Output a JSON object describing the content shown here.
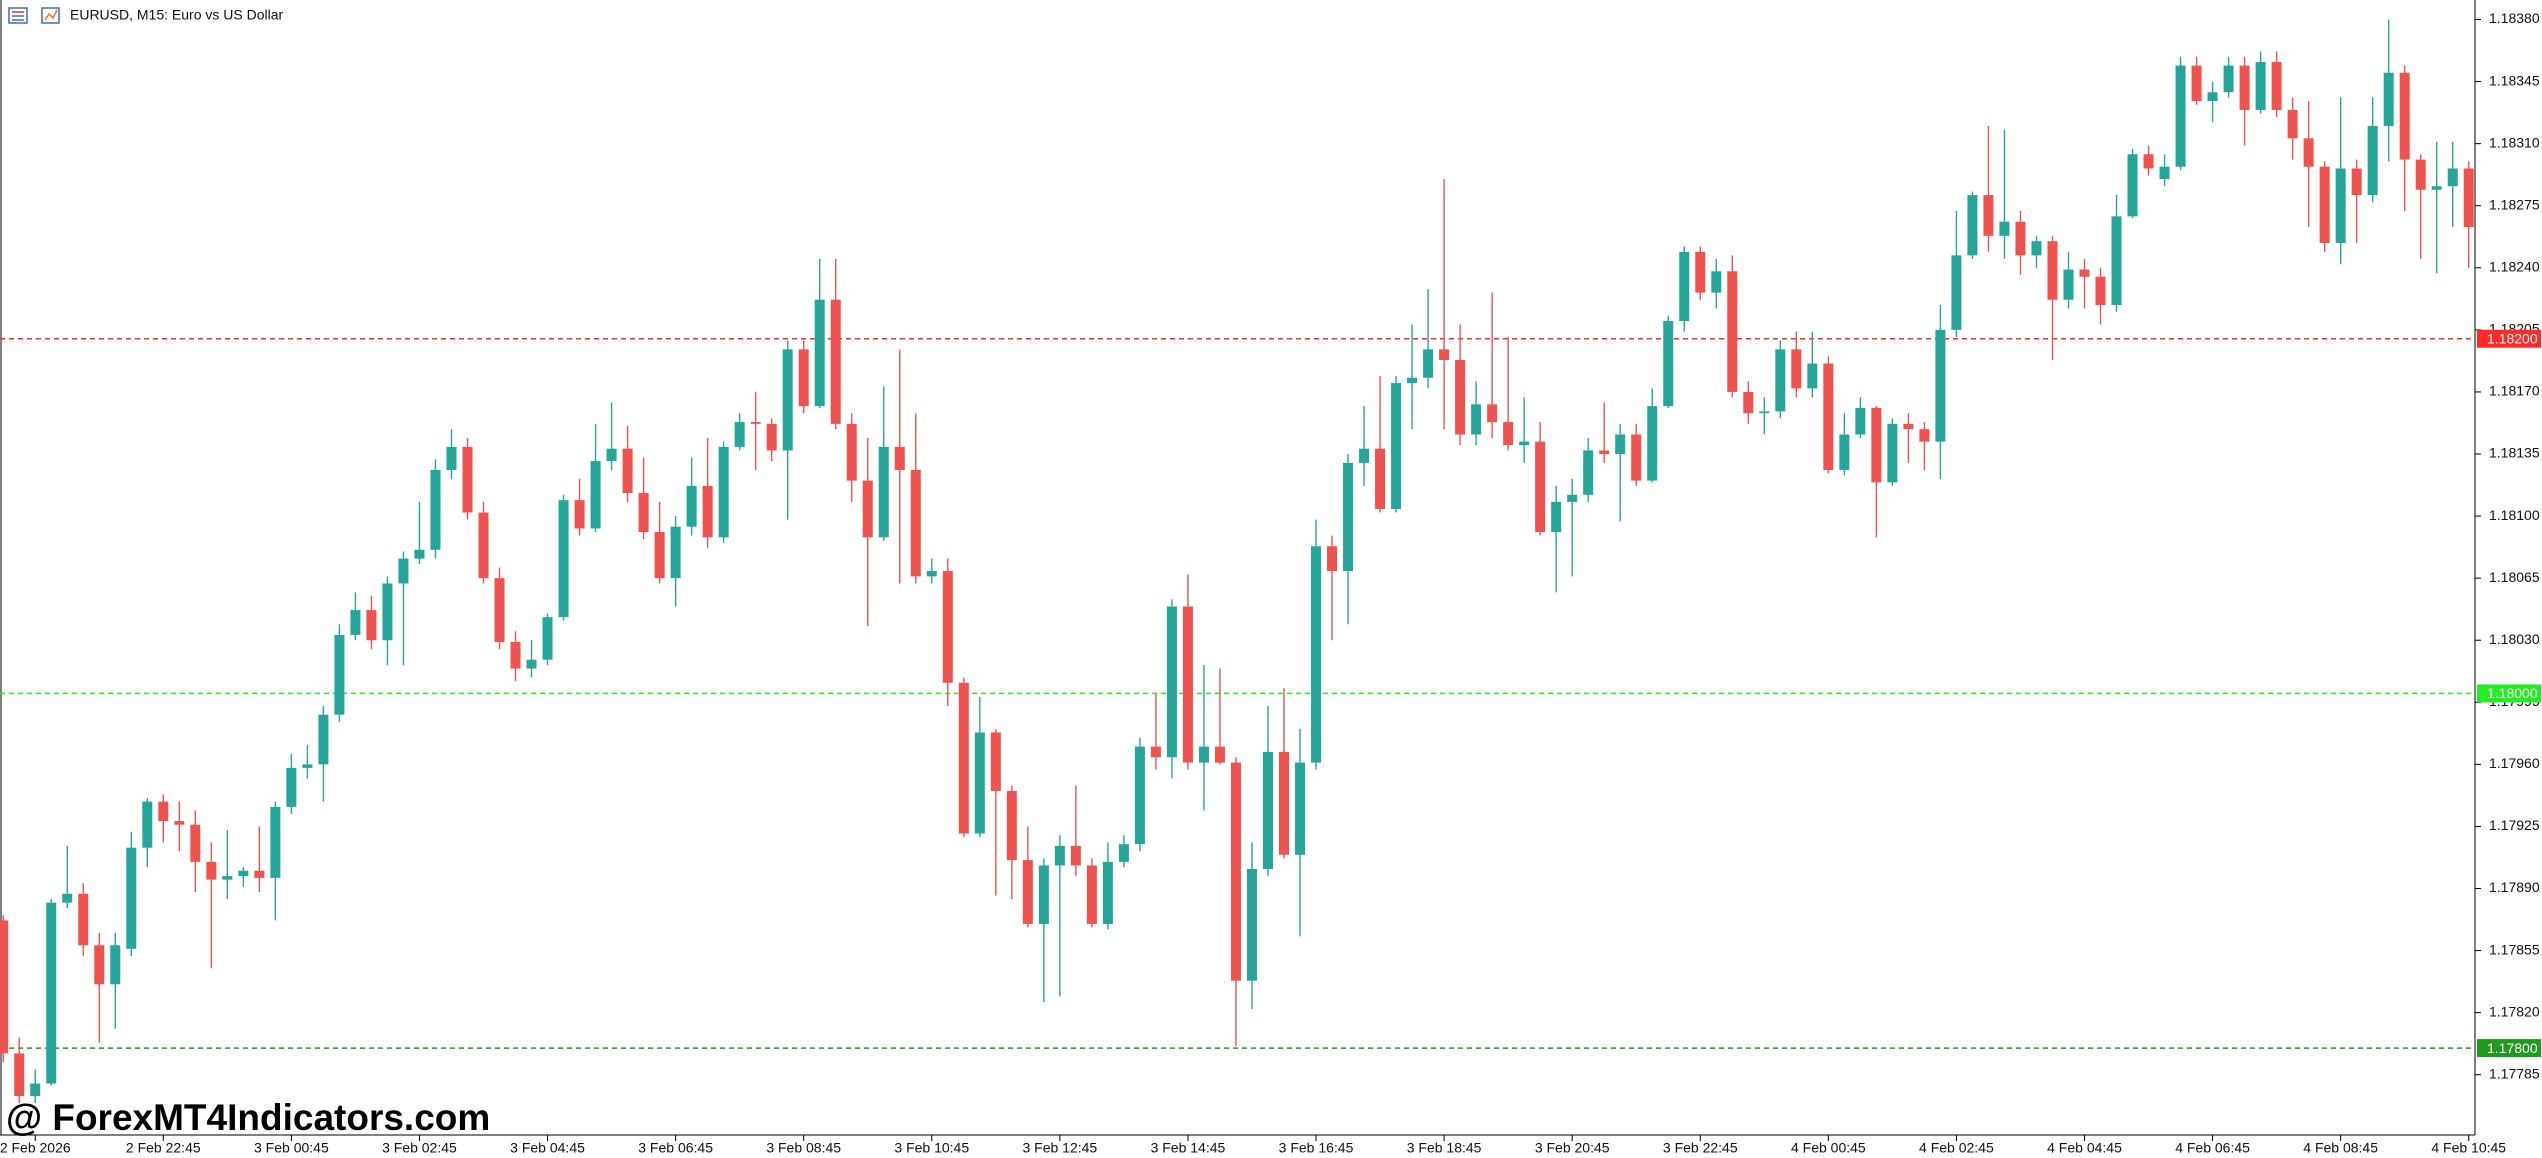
{
  "chart_data": {
    "type": "candlestick",
    "title": "EURUSD, M15:  Euro vs US Dollar",
    "annotation": "@ ForexMT4Indicators.com",
    "up_color": "#26a69a",
    "down_color": "#ef5350",
    "grid": false,
    "ylim": [
      1.17751,
      1.18391
    ],
    "yticks": [
      {
        "value": 1.1838,
        "label": "1.18380"
      },
      {
        "value": 1.18345,
        "label": "1.18345"
      },
      {
        "value": 1.1831,
        "label": "1.18310"
      },
      {
        "value": 1.18275,
        "label": "1.18275"
      },
      {
        "value": 1.1824,
        "label": "1.18240"
      },
      {
        "value": 1.18205,
        "label": "1.18205"
      },
      {
        "value": 1.1817,
        "label": "1.18170"
      },
      {
        "value": 1.18135,
        "label": "1.18135"
      },
      {
        "value": 1.181,
        "label": "1.18100"
      },
      {
        "value": 1.18065,
        "label": "1.18065"
      },
      {
        "value": 1.1803,
        "label": "1.18030"
      },
      {
        "value": 1.17995,
        "label": "1.17995"
      },
      {
        "value": 1.1796,
        "label": "1.17960"
      },
      {
        "value": 1.17925,
        "label": "1.17925"
      },
      {
        "value": 1.1789,
        "label": "1.17890"
      },
      {
        "value": 1.17855,
        "label": "1.17855"
      },
      {
        "value": 1.1782,
        "label": "1.17820"
      },
      {
        "value": 1.17785,
        "label": "1.17785"
      }
    ],
    "levels": [
      {
        "value": 1.182,
        "label": "1.18200",
        "color": "#ff2a2a"
      },
      {
        "value": 1.18,
        "label": "1.18000",
        "color": "#22ee22"
      },
      {
        "value": 1.178,
        "label": "1.17800",
        "color": "#1f9a1f"
      }
    ],
    "categories": [
      null,
      null,
      "2 Feb 2026",
      null,
      null,
      null,
      null,
      null,
      null,
      null,
      "2 Feb 22:45",
      null,
      null,
      null,
      null,
      null,
      null,
      null,
      "3 Feb 00:45",
      null,
      null,
      null,
      null,
      null,
      null,
      null,
      "3 Feb 02:45",
      null,
      null,
      null,
      null,
      null,
      null,
      null,
      "3 Feb 04:45",
      null,
      null,
      null,
      null,
      null,
      null,
      null,
      "3 Feb 06:45",
      null,
      null,
      null,
      null,
      null,
      null,
      null,
      "3 Feb 08:45",
      null,
      null,
      null,
      null,
      null,
      null,
      null,
      "3 Feb 10:45",
      null,
      null,
      null,
      null,
      null,
      null,
      null,
      "3 Feb 12:45",
      null,
      null,
      null,
      null,
      null,
      null,
      null,
      "3 Feb 14:45",
      null,
      null,
      null,
      null,
      null,
      null,
      null,
      "3 Feb 16:45",
      null,
      null,
      null,
      null,
      null,
      null,
      null,
      "3 Feb 18:45",
      null,
      null,
      null,
      null,
      null,
      null,
      null,
      "3 Feb 20:45",
      null,
      null,
      null,
      null,
      null,
      null,
      null,
      "3 Feb 22:45",
      null,
      null,
      null,
      null,
      null,
      null,
      null,
      "4 Feb 00:45",
      null,
      null,
      null,
      null,
      null,
      null,
      null,
      "4 Feb 02:45",
      null,
      null,
      null,
      null,
      null,
      null,
      null,
      "4 Feb 04:45",
      null,
      null,
      null,
      null,
      null,
      null,
      null,
      "4 Feb 06:45",
      null,
      null,
      null,
      null,
      null,
      null,
      null,
      "4 Feb 08:45",
      null,
      null,
      null,
      null,
      null,
      null,
      null,
      "4 Feb 10:45"
    ],
    "open": [
      1.17872,
      1.17797,
      1.17773,
      1.1778,
      1.17882,
      1.17887,
      1.17858,
      1.17836,
      1.17856,
      1.17913,
      1.17939,
      1.17928,
      1.17926,
      1.17905,
      1.17895,
      1.17897,
      1.179,
      1.17896,
      1.17936,
      1.17958,
      1.1796,
      1.17988,
      1.18033,
      1.18047,
      1.1803,
      1.18062,
      1.18076,
      1.18081,
      1.18126,
      1.18139,
      1.18102,
      1.18065,
      1.18029,
      1.18014,
      1.18019,
      1.18043,
      1.18109,
      1.18093,
      1.18131,
      1.18138,
      1.18113,
      1.18091,
      1.18065,
      1.18094,
      1.18117,
      1.18088,
      1.18139,
      1.18153,
      1.18152,
      1.18137,
      1.18194,
      1.18162,
      1.18222,
      1.18152,
      1.1812,
      1.18088,
      1.18139,
      1.18126,
      1.18066,
      1.18069,
      1.18006,
      1.17921,
      1.17978,
      1.17945,
      1.17906,
      1.1787,
      1.17903,
      1.17914,
      1.17903,
      1.1787,
      1.17905,
      1.17915,
      1.1797,
      1.17964,
      1.18049,
      1.17961,
      1.1797,
      1.17961,
      1.17838,
      1.17901,
      1.17967,
      1.17909,
      1.17961,
      1.18083,
      1.18069,
      1.1813,
      1.18138,
      1.18104,
      1.18175,
      1.18178,
      1.18194,
      1.18188,
      1.18146,
      1.18163,
      1.18153,
      1.1814,
      1.18142,
      1.18091,
      1.18108,
      1.18112,
      1.18137,
      1.18135,
      1.18146,
      1.1812,
      1.18162,
      1.1821,
      1.18249,
      1.18226,
      1.18238,
      1.1817,
      1.18158,
      1.18159,
      1.18194,
      1.18172,
      1.18186,
      1.18126,
      1.18146,
      1.18161,
      1.18119,
      1.18152,
      1.18149,
      1.18142,
      1.18205,
      1.18247,
      1.18281,
      1.18258,
      1.18266,
      1.18247,
      1.18255,
      1.18222,
      1.18239,
      1.18235,
      1.18219,
      1.18269,
      1.18304,
      1.1829,
      1.18297,
      1.18354,
      1.18334,
      1.18339,
      1.18354,
      1.18329,
      1.18356,
      1.18329,
      1.18313,
      1.18297,
      1.18254,
      1.18296,
      1.18281,
      1.1832,
      1.1835,
      1.18301,
      1.18284,
      1.18286,
      1.18296
    ],
    "high": [
      1.17875,
      1.17806,
      1.17788,
      1.17884,
      1.17914,
      1.17893,
      1.17865,
      1.17865,
      1.17922,
      1.17941,
      1.17943,
      1.17939,
      1.17934,
      1.17916,
      1.17923,
      1.17902,
      1.17925,
      1.17939,
      1.17966,
      1.17971,
      1.17993,
      1.18039,
      1.18057,
      1.18055,
      1.18066,
      1.1808,
      1.18108,
      1.18132,
      1.18149,
      1.18144,
      1.18108,
      1.18071,
      1.18035,
      1.1803,
      1.18045,
      1.18112,
      1.18121,
      1.18152,
      1.18164,
      1.18151,
      1.18133,
      1.18108,
      1.181,
      1.18133,
      1.18144,
      1.18142,
      1.18158,
      1.1817,
      1.18155,
      1.18199,
      1.18199,
      1.18245,
      1.18245,
      1.18158,
      1.18144,
      1.18173,
      1.18194,
      1.18158,
      1.18076,
      1.18076,
      1.18009,
      1.17998,
      1.1798,
      1.17948,
      1.17925,
      1.17907,
      1.1792,
      1.17948,
      1.17907,
      1.17916,
      1.1792,
      1.17975,
      1.18,
      1.18053,
      1.18067,
      1.18016,
      1.18014,
      1.17964,
      1.17916,
      1.17993,
      1.18003,
      1.1798,
      1.18098,
      1.18089,
      1.18135,
      1.18162,
      1.18179,
      1.18179,
      1.18208,
      1.18228,
      1.1829,
      1.18208,
      1.18176,
      1.18226,
      1.18201,
      1.18167,
      1.18153,
      1.18117,
      1.18121,
      1.18144,
      1.18164,
      1.18152,
      1.18152,
      1.18172,
      1.18213,
      1.18252,
      1.18252,
      1.18245,
      1.18247,
      1.18176,
      1.18167,
      1.18199,
      1.18204,
      1.18204,
      1.1819,
      1.18158,
      1.18167,
      1.18162,
      1.18155,
      1.18158,
      1.18153,
      1.18219,
      1.18272,
      1.18283,
      1.1832,
      1.18318,
      1.18272,
      1.18258,
      1.18258,
      1.18249,
      1.18245,
      1.1824,
      1.18281,
      1.18307,
      1.18309,
      1.18304,
      1.18359,
      1.18359,
      1.18345,
      1.18359,
      1.18359,
      1.18362,
      1.18362,
      1.18336,
      1.18334,
      1.183,
      1.18336,
      1.18301,
      1.18336,
      1.1838,
      1.18354,
      1.18304,
      1.18311,
      1.18311,
      1.183
    ],
    "low": [
      1.17792,
      1.17769,
      1.17769,
      1.17779,
      1.17879,
      1.17852,
      1.17803,
      1.17811,
      1.17852,
      1.17902,
      1.17916,
      1.17911,
      1.17888,
      1.17845,
      1.17884,
      1.17891,
      1.17888,
      1.17872,
      1.17932,
      1.17952,
      1.17939,
      1.17984,
      1.1803,
      1.18025,
      1.18016,
      1.18016,
      1.18073,
      1.18076,
      1.18121,
      1.18098,
      1.18062,
      1.18025,
      1.18007,
      1.18009,
      1.18016,
      1.18041,
      1.18089,
      1.18091,
      1.18126,
      1.18108,
      1.18087,
      1.18062,
      1.18049,
      1.18089,
      1.18082,
      1.18085,
      1.18137,
      1.18126,
      1.18131,
      1.18098,
      1.18158,
      1.18161,
      1.18149,
      1.18108,
      1.18038,
      1.18086,
      1.18062,
      1.18062,
      1.18062,
      1.17993,
      1.17919,
      1.17919,
      1.17886,
      1.17884,
      1.17868,
      1.17826,
      1.17829,
      1.17897,
      1.17868,
      1.17867,
      1.17902,
      1.17911,
      1.17957,
      1.17952,
      1.17957,
      1.17934,
      1.1796,
      1.17801,
      1.17822,
      1.17897,
      1.17907,
      1.17863,
      1.17957,
      1.1803,
      1.18039,
      1.18117,
      1.18102,
      1.18102,
      1.18149,
      1.18172,
      1.18149,
      1.1814,
      1.1814,
      1.18144,
      1.18137,
      1.1813,
      1.18089,
      1.18057,
      1.18066,
      1.18108,
      1.1813,
      1.18097,
      1.18117,
      1.18119,
      1.18161,
      1.18204,
      1.18222,
      1.18217,
      1.18167,
      1.18152,
      1.18146,
      1.18155,
      1.18167,
      1.18167,
      1.18124,
      1.18123,
      1.18144,
      1.18088,
      1.18117,
      1.1813,
      1.18126,
      1.18121,
      1.18201,
      1.18245,
      1.18249,
      1.18245,
      1.18236,
      1.1824,
      1.18188,
      1.18217,
      1.18217,
      1.18208,
      1.18215,
      1.18268,
      1.18292,
      1.18286,
      1.18295,
      1.18332,
      1.18322,
      1.18336,
      1.18309,
      1.18327,
      1.18325,
      1.18301,
      1.18263,
      1.18249,
      1.18242,
      1.18254,
      1.18277,
      1.183,
      1.18272,
      1.18245,
      1.18237,
      1.18263,
      1.1824
    ],
    "close": [
      1.17797,
      1.17773,
      1.1778,
      1.17882,
      1.17887,
      1.17858,
      1.17836,
      1.17858,
      1.17913,
      1.17939,
      1.17928,
      1.17926,
      1.17905,
      1.17895,
      1.17897,
      1.179,
      1.17896,
      1.17936,
      1.17958,
      1.1796,
      1.17988,
      1.18033,
      1.18047,
      1.1803,
      1.18062,
      1.18076,
      1.18081,
      1.18126,
      1.18139,
      1.18102,
      1.18065,
      1.18029,
      1.18014,
      1.18019,
      1.18043,
      1.18109,
      1.18093,
      1.18131,
      1.18138,
      1.18113,
      1.18091,
      1.18065,
      1.18094,
      1.18117,
      1.18088,
      1.18139,
      1.18153,
      1.18152,
      1.18137,
      1.18194,
      1.18162,
      1.18222,
      1.18152,
      1.1812,
      1.18088,
      1.18139,
      1.18126,
      1.18066,
      1.18069,
      1.18006,
      1.17921,
      1.17978,
      1.17945,
      1.17906,
      1.1787,
      1.17903,
      1.17914,
      1.17903,
      1.1787,
      1.17905,
      1.17915,
      1.1797,
      1.17964,
      1.18049,
      1.17961,
      1.1797,
      1.17961,
      1.17838,
      1.17901,
      1.17967,
      1.17909,
      1.17961,
      1.18083,
      1.18069,
      1.1813,
      1.18138,
      1.18104,
      1.18175,
      1.18178,
      1.18194,
      1.18188,
      1.18146,
      1.18163,
      1.18153,
      1.1814,
      1.18142,
      1.18091,
      1.18108,
      1.18112,
      1.18137,
      1.18135,
      1.18146,
      1.1812,
      1.18162,
      1.1821,
      1.18249,
      1.18226,
      1.18238,
      1.1817,
      1.18158,
      1.18159,
      1.18194,
      1.18172,
      1.18186,
      1.18126,
      1.18146,
      1.18161,
      1.18119,
      1.18152,
      1.18149,
      1.18142,
      1.18205,
      1.18247,
      1.18281,
      1.18258,
      1.18266,
      1.18247,
      1.18255,
      1.18222,
      1.18239,
      1.18235,
      1.18219,
      1.18269,
      1.18304,
      1.18296,
      1.18297,
      1.18354,
      1.18334,
      1.18339,
      1.18354,
      1.18329,
      1.18356,
      1.18329,
      1.18313,
      1.18297,
      1.18254,
      1.18296,
      1.18281,
      1.1832,
      1.1835,
      1.18301,
      1.18284,
      1.18286,
      1.18296,
      1.18263
    ]
  }
}
